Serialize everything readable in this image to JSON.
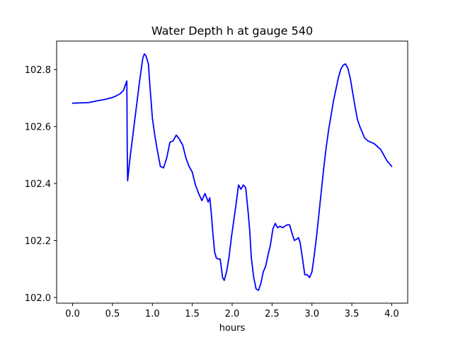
{
  "chart_data": {
    "type": "line",
    "title": "Water Depth h at gauge 540",
    "xlabel": "hours",
    "ylabel": "",
    "xlim": [
      -0.2,
      4.2
    ],
    "ylim": [
      101.98,
      102.9
    ],
    "grid": false,
    "x_ticks": [
      {
        "value": 0.0,
        "label": "0.0"
      },
      {
        "value": 0.5,
        "label": "0.5"
      },
      {
        "value": 1.0,
        "label": "1.0"
      },
      {
        "value": 1.5,
        "label": "1.5"
      },
      {
        "value": 2.0,
        "label": "2.0"
      },
      {
        "value": 2.5,
        "label": "2.5"
      },
      {
        "value": 3.0,
        "label": "3.0"
      },
      {
        "value": 3.5,
        "label": "3.5"
      },
      {
        "value": 4.0,
        "label": "4.0"
      }
    ],
    "y_ticks": [
      {
        "value": 102.0,
        "label": "102.0"
      },
      {
        "value": 102.2,
        "label": "102.2"
      },
      {
        "value": 102.4,
        "label": "102.4"
      },
      {
        "value": 102.6,
        "label": "102.6"
      },
      {
        "value": 102.8,
        "label": "102.8"
      }
    ],
    "series": [
      {
        "color": "#0000ff",
        "x": [
          0.0,
          0.1,
          0.2,
          0.3,
          0.4,
          0.5,
          0.55,
          0.6,
          0.64,
          0.66,
          0.68,
          0.685,
          0.69,
          0.72,
          0.76,
          0.8,
          0.84,
          0.88,
          0.9,
          0.92,
          0.95,
          0.97,
          1.0,
          1.03,
          1.06,
          1.1,
          1.14,
          1.18,
          1.22,
          1.26,
          1.3,
          1.34,
          1.38,
          1.42,
          1.46,
          1.5,
          1.54,
          1.58,
          1.62,
          1.66,
          1.7,
          1.72,
          1.74,
          1.76,
          1.78,
          1.8,
          1.82,
          1.85,
          1.88,
          1.9,
          1.93,
          1.96,
          1.99,
          2.02,
          2.05,
          2.08,
          2.11,
          2.14,
          2.17,
          2.2,
          2.22,
          2.24,
          2.27,
          2.3,
          2.33,
          2.36,
          2.39,
          2.42,
          2.45,
          2.48,
          2.51,
          2.54,
          2.57,
          2.6,
          2.63,
          2.66,
          2.69,
          2.72,
          2.75,
          2.78,
          2.81,
          2.83,
          2.85,
          2.88,
          2.91,
          2.94,
          2.97,
          3.0,
          3.03,
          3.06,
          3.09,
          3.12,
          3.15,
          3.18,
          3.21,
          3.24,
          3.27,
          3.3,
          3.33,
          3.36,
          3.39,
          3.42,
          3.45,
          3.48,
          3.51,
          3.54,
          3.57,
          3.6,
          3.63,
          3.66,
          3.7,
          3.74,
          3.78,
          3.82,
          3.86,
          3.88,
          3.9,
          3.92,
          3.94,
          3.97,
          4.0
        ],
        "y": [
          102.682,
          102.683,
          102.684,
          102.69,
          102.695,
          102.702,
          102.708,
          102.716,
          102.728,
          102.745,
          102.76,
          102.52,
          102.41,
          102.49,
          102.58,
          102.67,
          102.76,
          102.84,
          102.855,
          102.848,
          102.82,
          102.74,
          102.63,
          102.57,
          102.52,
          102.46,
          102.455,
          102.49,
          102.545,
          102.55,
          102.57,
          102.555,
          102.535,
          102.49,
          102.46,
          102.44,
          102.395,
          102.365,
          102.34,
          102.365,
          102.335,
          102.35,
          102.29,
          102.22,
          102.16,
          102.14,
          102.135,
          102.135,
          102.07,
          102.06,
          102.09,
          102.14,
          102.21,
          102.27,
          102.33,
          102.395,
          102.38,
          102.395,
          102.385,
          102.3,
          102.235,
          102.14,
          102.07,
          102.03,
          102.025,
          102.05,
          102.09,
          102.11,
          102.15,
          102.185,
          102.24,
          102.26,
          102.245,
          102.25,
          102.245,
          102.25,
          102.255,
          102.255,
          102.225,
          102.2,
          102.205,
          102.21,
          102.195,
          102.14,
          102.08,
          102.08,
          102.07,
          102.09,
          102.15,
          102.22,
          102.3,
          102.38,
          102.46,
          102.53,
          102.59,
          102.64,
          102.69,
          102.73,
          102.77,
          102.8,
          102.815,
          102.82,
          102.805,
          102.77,
          102.72,
          102.67,
          102.625,
          102.6,
          102.58,
          102.56,
          102.55,
          102.545,
          102.54,
          102.53,
          102.52,
          102.51,
          102.5,
          102.49,
          102.48,
          102.47,
          102.46
        ]
      }
    ]
  }
}
